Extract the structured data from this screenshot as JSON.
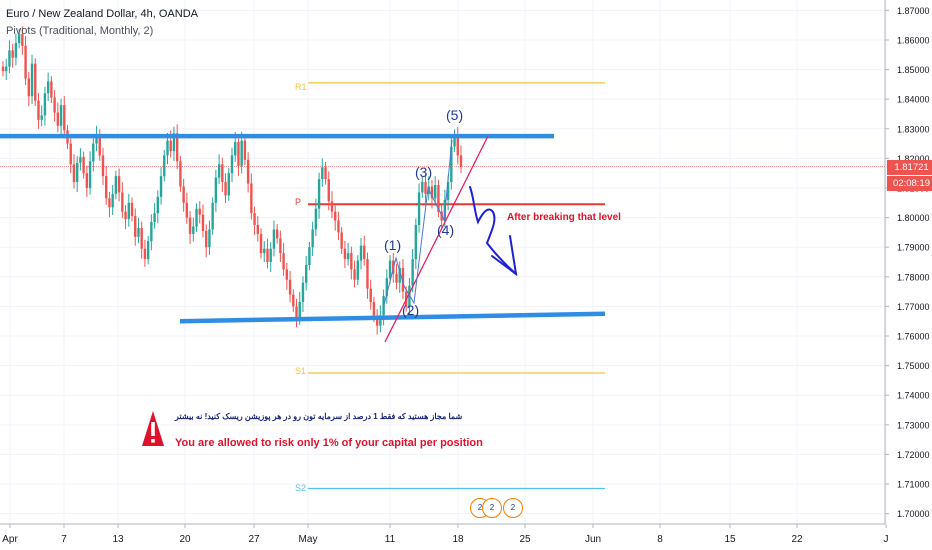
{
  "legend": {
    "title": "Euro / New Zealand Dollar, 4h, OANDA",
    "indicator": "Pivots (Traditional, Monthly, 2)"
  },
  "price_axis": {
    "current_price": "1.81721",
    "countdown": "02:08:19",
    "current_color": "#ef5350",
    "countdown_color": "#ef5350"
  },
  "annotations": {
    "wave_labels": [
      "(1)",
      "(2)",
      "(3)",
      "(4)",
      "(5)"
    ],
    "breakout_note": "After breaking that level",
    "risk_note_fa": "شما مجاز هستید که فقط 1 درصد از سرمایه تون رو در هر پوزیشن  ریسک کنید! نه بیشتر",
    "risk_note_en": "You are allowed to risk only 1% of your capital per position",
    "warning_icon": "warning-triangle-icon"
  },
  "pivots": {
    "R1": {
      "label": "R1",
      "price": 1.8455,
      "color": "#f5c242"
    },
    "P": {
      "label": "P",
      "price": 1.8045,
      "color": "#e53935"
    },
    "S1": {
      "label": "S1",
      "price": 1.7475,
      "color": "#f5c242"
    },
    "S2": {
      "label": "S2",
      "price": 1.7085,
      "color": "#4fc3f7"
    }
  },
  "events": {
    "count_label": "2",
    "icon": "economic-event-flag-icon"
  },
  "chart_data": {
    "type": "candlestick",
    "symbol": "EURNZD",
    "timeframe": "4h",
    "x_tick_labels": [
      "Apr",
      "7",
      "13",
      "20",
      "27",
      "May",
      "11",
      "18",
      "25",
      "Jun",
      "8",
      "15",
      "22",
      "J"
    ],
    "y_tick_labels": [
      "1.87000",
      "1.86000",
      "1.85000",
      "1.84000",
      "1.83000",
      "1.82000",
      "1.81000",
      "1.80000",
      "1.79000",
      "1.78000",
      "1.77000",
      "1.76000",
      "1.75000",
      "1.74000",
      "1.73000",
      "1.72000",
      "1.71000",
      "1.70000"
    ],
    "ylim": [
      1.6965,
      1.8735
    ],
    "last_price": 1.81721,
    "resistance_level": 1.8275,
    "support_line": {
      "start": 1.765,
      "end": 1.7675
    },
    "up_color": "#26a69a",
    "down_color": "#ef5350",
    "closes": [
      1.8495,
      1.851,
      1.8565,
      1.854,
      1.859,
      1.862,
      1.858,
      1.847,
      1.841,
      1.852,
      1.8395,
      1.833,
      1.8345,
      1.842,
      1.846,
      1.8405,
      1.8355,
      1.831,
      1.838,
      1.8295,
      1.825,
      1.818,
      1.812,
      1.8185,
      1.8205,
      1.815,
      1.81,
      1.819,
      1.825,
      1.828,
      1.821,
      1.814,
      1.8065,
      1.8035,
      1.808,
      1.814,
      1.8085,
      1.802,
      1.7995,
      1.805,
      1.8005,
      1.7935,
      1.7965,
      1.7895,
      1.786,
      1.792,
      1.7985,
      1.8015,
      1.807,
      1.814,
      1.821,
      1.826,
      1.8225,
      1.8285,
      1.819,
      1.8105,
      1.805,
      1.8,
      1.7945,
      1.797,
      1.803,
      1.801,
      1.7955,
      1.79,
      1.796,
      1.805,
      1.8135,
      1.818,
      1.812,
      1.8075,
      1.815,
      1.821,
      1.8255,
      1.8175,
      1.826,
      1.8195,
      1.8115,
      1.8015,
      1.7975,
      1.7945,
      1.788,
      1.7895,
      1.785,
      1.7895,
      1.796,
      1.793,
      1.788,
      1.7825,
      1.779,
      1.774,
      1.77,
      1.766,
      1.7715,
      1.778,
      1.784,
      1.79,
      1.796,
      1.803,
      1.813,
      1.817,
      1.813,
      1.8055,
      1.802,
      1.799,
      1.795,
      1.7895,
      1.786,
      1.788,
      1.7825,
      1.779,
      1.7855,
      1.7905,
      1.786,
      1.776,
      1.7715,
      1.7665,
      1.7635,
      1.767,
      1.7735,
      1.7795,
      1.7855,
      1.781,
      1.778,
      1.783,
      1.775,
      1.77,
      1.777,
      1.786,
      1.7975,
      1.8085,
      1.812,
      1.808,
      1.8105,
      1.8065,
      1.811,
      1.802,
      1.799,
      1.806,
      1.812,
      1.824,
      1.828,
      1.821,
      1.8172
    ]
  }
}
